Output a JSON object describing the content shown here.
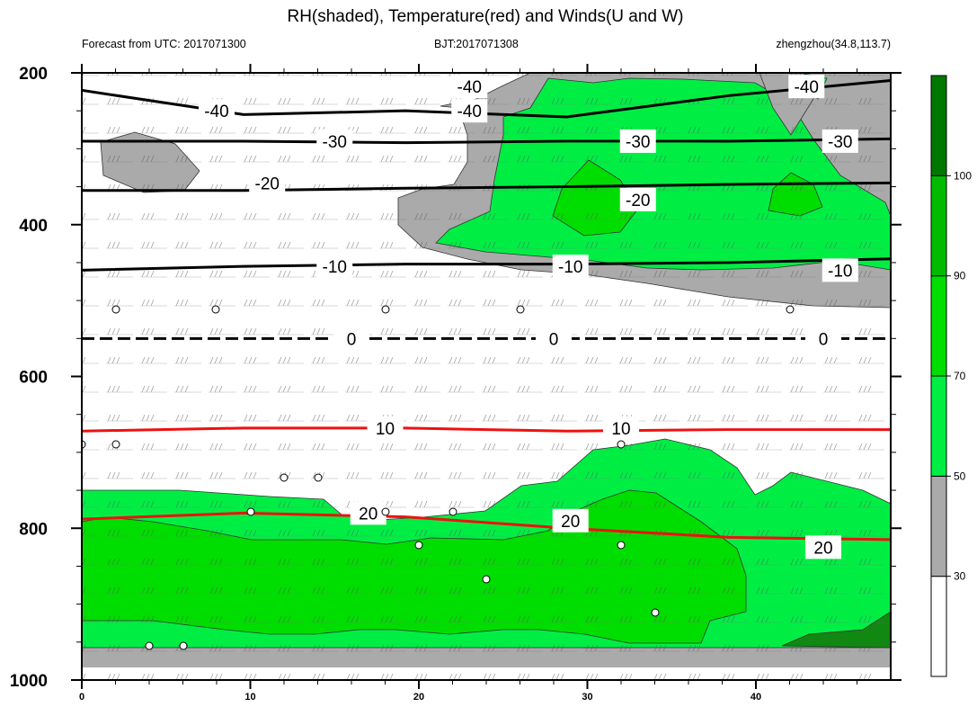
{
  "header": {
    "title": "RH(shaded), Temperature(red) and Winds(U and W)",
    "left": "Forecast from UTC: 2017071300",
    "center": "BJT:2017071308",
    "right": "zhengzhou(34.8,113.7)"
  },
  "chart_data": {
    "type": "time-pressure cross-section (contour)",
    "title": "RH(shaded), Temperature(red) and Winds(U and W)",
    "x_ticks": [
      "0",
      "10",
      "20",
      "30",
      "40"
    ],
    "x_tick_values": [
      0,
      10,
      20,
      30,
      40
    ],
    "xlim": [
      0,
      48
    ],
    "y_ticks": [
      "200",
      "400",
      "600",
      "800",
      "1000"
    ],
    "y_tick_values": [
      200,
      400,
      600,
      800,
      1000
    ],
    "ylim": [
      200,
      1000
    ],
    "colorbar": {
      "labels": [
        "30",
        "50",
        "70",
        "90",
        "100"
      ],
      "levels": [
        30,
        50,
        70,
        90,
        100
      ],
      "colors": [
        "#ffffff",
        "#aaaaaa",
        "#00ee44",
        "#00dd00",
        "#00bb00",
        "#007700"
      ]
    },
    "colors": {
      "temp_warm": "#ee1111",
      "temp_cold": "#000000",
      "rh_30_50": "#aaaaaa",
      "rh_50_70": "#00ee44",
      "rh_70_90": "#00dd00",
      "rh_90_100": "#00bb00",
      "rh_100": "#118811"
    },
    "temperature_isotherms": [
      {
        "value": -40,
        "label": "-40",
        "color": "black",
        "p": [
          223,
          255,
          250,
          258,
          230,
          210
        ],
        "labels": [
          [
            8,
            250
          ],
          [
            23,
            250
          ],
          [
            23,
            218
          ],
          [
            43,
            218
          ]
        ]
      },
      {
        "value": -30,
        "label": "-30",
        "color": "black",
        "p": [
          290,
          290,
          292,
          290,
          290,
          287
        ],
        "labels": [
          [
            15,
            290
          ],
          [
            33,
            290
          ],
          [
            45,
            290
          ]
        ]
      },
      {
        "value": -20,
        "label": "-20",
        "color": "black",
        "p": [
          355,
          355,
          352,
          350,
          347,
          345
        ],
        "labels": [
          [
            11,
            345
          ],
          [
            33,
            367
          ]
        ]
      },
      {
        "value": -10,
        "label": "-10",
        "color": "black",
        "p": [
          460,
          455,
          452,
          452,
          450,
          445
        ],
        "labels": [
          [
            15,
            455
          ],
          [
            29,
            455
          ],
          [
            45,
            460
          ]
        ]
      },
      {
        "value": 0,
        "label": "0",
        "color": "black",
        "p": [
          550,
          550,
          550,
          550,
          550,
          550
        ],
        "labels": [
          [
            16,
            550
          ],
          [
            28,
            550
          ],
          [
            44,
            550
          ]
        ]
      },
      {
        "value": 10,
        "label": "10",
        "color": "red",
        "p": [
          672,
          668,
          668,
          672,
          670,
          670
        ],
        "labels": [
          [
            18,
            668
          ],
          [
            32,
            668
          ]
        ]
      },
      {
        "value": 20,
        "label": "20",
        "color": "red",
        "p": [
          788,
          780,
          785,
          800,
          812,
          815
        ],
        "labels": [
          [
            17,
            780
          ],
          [
            29,
            790
          ],
          [
            44,
            825
          ]
        ]
      }
    ],
    "rh_regions": [
      "dry band 500-590 hPa",
      "moist upper levels after hour 20",
      "moist low levels below 800 hPa"
    ]
  }
}
